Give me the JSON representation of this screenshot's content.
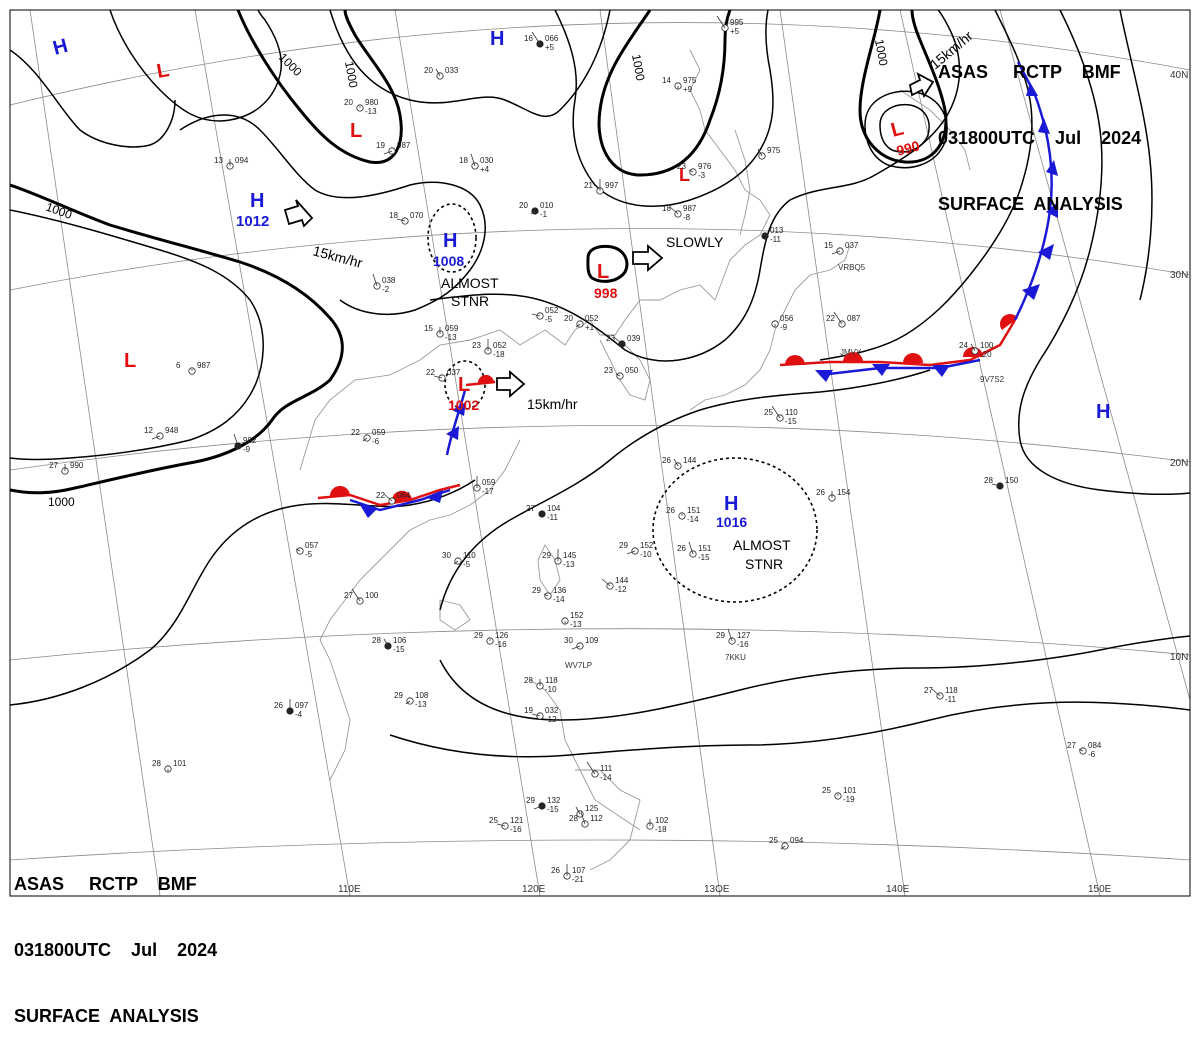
{
  "header": {
    "line1": "ASAS     RCTP    BMF",
    "line2": "031800UTC    Jul    2024",
    "line3": "SURFACE  ANALYSIS"
  },
  "colors": {
    "high": "#1a1ad6",
    "low": "#e01010",
    "warm_front": "#e01010",
    "cold_front": "#1a1ad6",
    "isobar": "#000000",
    "grid": "#8a8a8a",
    "coast": "#9a9a9a"
  },
  "lon_labels": [
    "110E",
    "120E",
    "13OE",
    "140E",
    "150E"
  ],
  "lat_labels": [
    "40N",
    "30N",
    "20N",
    "10N"
  ],
  "isobar_labels": [
    "1000",
    "1000",
    "1000",
    "1000",
    "1000",
    "1000"
  ],
  "pressure_systems": [
    {
      "type": "H",
      "value": ""
    },
    {
      "type": "L",
      "value": ""
    },
    {
      "type": "L",
      "value": ""
    },
    {
      "type": "H",
      "value": ""
    },
    {
      "type": "H",
      "value": "1012"
    },
    {
      "type": "H",
      "value": "1008"
    },
    {
      "type": "L",
      "value": "998"
    },
    {
      "type": "L",
      "value": ""
    },
    {
      "type": "L",
      "value": "990"
    },
    {
      "type": "L",
      "value": ""
    },
    {
      "type": "L",
      "value": "1002"
    },
    {
      "type": "H",
      "value": "1016"
    },
    {
      "type": "H",
      "value": ""
    }
  ],
  "annotations": {
    "motion_1": "15km/hr",
    "motion_2": "SLOWLY",
    "motion_3": "15km/hr",
    "motion_4": "15km/hr",
    "stnr_1_a": "ALMOST",
    "stnr_1_b": "STNR",
    "stnr_2_a": "ALMOST",
    "stnr_2_b": "STNR"
  },
  "stations": [
    {
      "t": "16",
      "p": "066",
      "d": "+5"
    },
    {
      "t": "20",
      "p": "033",
      "d": ""
    },
    {
      "t": "20",
      "p": "980",
      "d": "-13"
    },
    {
      "t": "19",
      "p": "987",
      "d": ""
    },
    {
      "t": "18",
      "p": "030",
      "d": "+4"
    },
    {
      "t": "13",
      "p": "094",
      "d": ""
    },
    {
      "t": "18",
      "p": "070",
      "d": ""
    },
    {
      "t": "20",
      "p": "010",
      "d": "-1"
    },
    {
      "t": "21",
      "p": "997",
      "d": ""
    },
    {
      "t": "18",
      "p": "987",
      "d": "-8"
    },
    {
      "t": "23",
      "p": "976",
      "d": "-3"
    },
    {
      "t": "14",
      "p": "975",
      "d": "+9"
    },
    {
      "t": "",
      "p": "995",
      "d": "+5"
    },
    {
      "t": "",
      "p": "975",
      "d": ""
    },
    {
      "t": "",
      "p": "013",
      "d": "-11"
    },
    {
      "t": "15",
      "p": "037",
      "d": ""
    },
    {
      "t": "",
      "p": "038",
      "d": "-2"
    },
    {
      "t": "15",
      "p": "059",
      "d": "-13"
    },
    {
      "t": "",
      "p": "052",
      "d": "-5"
    },
    {
      "t": "20",
      "p": "052",
      "d": "+1"
    },
    {
      "t": "23",
      "p": "052",
      "d": "-18"
    },
    {
      "t": "23",
      "p": "039",
      "d": ""
    },
    {
      "t": "23",
      "p": "050",
      "d": ""
    },
    {
      "t": "",
      "p": "056",
      "d": "-9"
    },
    {
      "t": "22",
      "p": "087",
      "d": ""
    },
    {
      "t": "24",
      "p": "100",
      "d": "-20"
    },
    {
      "t": "6",
      "p": "987",
      "d": ""
    },
    {
      "t": "12",
      "p": "948",
      "d": ""
    },
    {
      "t": "",
      "p": "982",
      "d": "-9"
    },
    {
      "t": "27",
      "p": "990",
      "d": ""
    },
    {
      "t": "22",
      "p": "037",
      "d": ""
    },
    {
      "t": "22",
      "p": "059",
      "d": "-6"
    },
    {
      "t": "",
      "p": "059",
      "d": "-17"
    },
    {
      "t": "22",
      "p": "064",
      "d": ""
    },
    {
      "t": "",
      "p": "057",
      "d": "-5"
    },
    {
      "t": "27",
      "p": "104",
      "d": "-11"
    },
    {
      "t": "25",
      "p": "110",
      "d": "-15"
    },
    {
      "t": "26",
      "p": "144",
      "d": ""
    },
    {
      "t": "26",
      "p": "151",
      "d": "-14"
    },
    {
      "t": "29",
      "p": "152",
      "d": "-10"
    },
    {
      "t": "26",
      "p": "151",
      "d": "-15"
    },
    {
      "t": "26",
      "p": "154",
      "d": ""
    },
    {
      "t": "28",
      "p": "150",
      "d": ""
    },
    {
      "t": "30",
      "p": "110",
      "d": "-5"
    },
    {
      "t": "29",
      "p": "145",
      "d": "-13"
    },
    {
      "t": "",
      "p": "144",
      "d": "-12"
    },
    {
      "t": "29",
      "p": "136",
      "d": "-14"
    },
    {
      "t": "",
      "p": "152",
      "d": "-13"
    },
    {
      "t": "27",
      "p": "100",
      "d": ""
    },
    {
      "t": "28",
      "p": "106",
      "d": "-15"
    },
    {
      "t": "29",
      "p": "126",
      "d": "-16"
    },
    {
      "t": "30",
      "p": "109",
      "d": ""
    },
    {
      "t": "29",
      "p": "127",
      "d": "-16"
    },
    {
      "t": "28",
      "p": "118",
      "d": "-10"
    },
    {
      "t": "19",
      "p": "032",
      "d": "-12"
    },
    {
      "t": "29",
      "p": "108",
      "d": "-13"
    },
    {
      "t": "26",
      "p": "097",
      "d": "-4"
    },
    {
      "t": "27",
      "p": "118",
      "d": "-11"
    },
    {
      "t": "27",
      "p": "084",
      "d": "-6"
    },
    {
      "t": "28",
      "p": "101",
      "d": ""
    },
    {
      "t": "",
      "p": "111",
      "d": "-14"
    },
    {
      "t": "",
      "p": "125",
      "d": ""
    },
    {
      "t": "25",
      "p": "101",
      "d": "-19"
    },
    {
      "t": "29",
      "p": "132",
      "d": "-15"
    },
    {
      "t": "28",
      "p": "112",
      "d": ""
    },
    {
      "t": "",
      "p": "102",
      "d": "-18"
    },
    {
      "t": "25",
      "p": "121",
      "d": "-16"
    },
    {
      "t": "25",
      "p": "094",
      "d": ""
    },
    {
      "t": "26",
      "p": "107",
      "d": "-21"
    }
  ],
  "ship_ids": [
    "VRBQ5",
    "JMVY",
    "9V7S2",
    "WV7LP",
    "7KKU"
  ]
}
